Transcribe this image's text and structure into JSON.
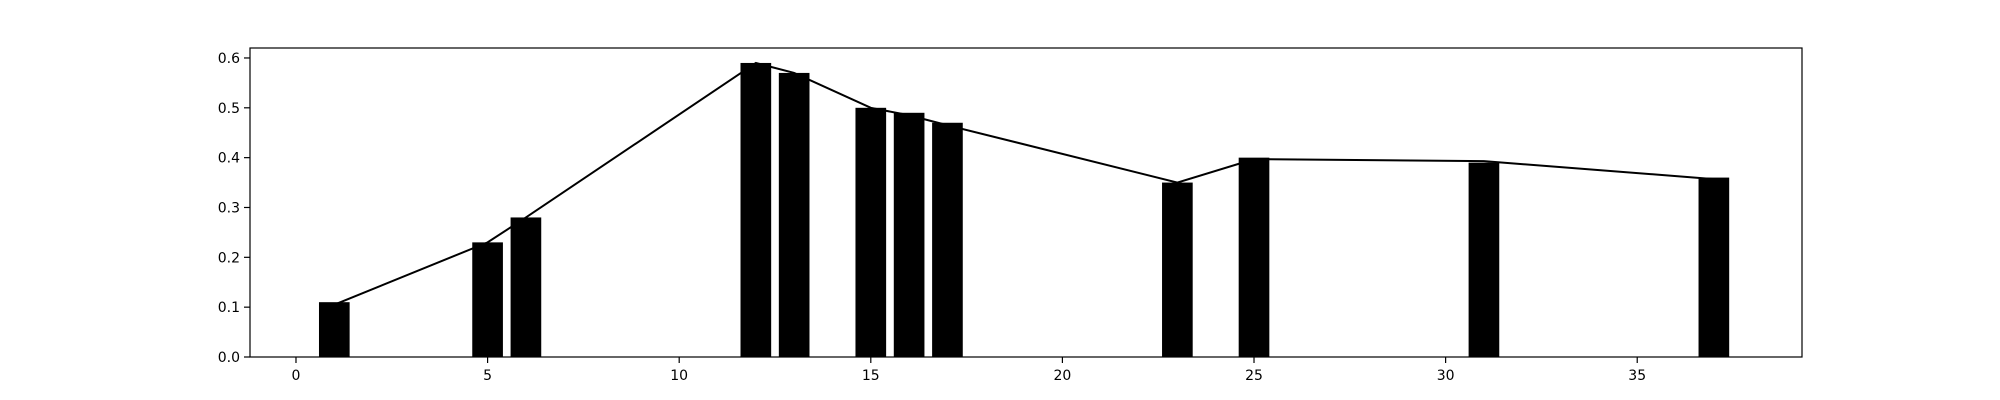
{
  "chart_data": {
    "type": "bar",
    "title": "",
    "xlabel": "",
    "ylabel": "",
    "xlim": [
      -1.2,
      39.3
    ],
    "ylim": [
      0,
      0.62
    ],
    "x_ticks": [
      0,
      5,
      10,
      15,
      20,
      25,
      30,
      35
    ],
    "y_ticks": [
      0.0,
      0.1,
      0.2,
      0.3,
      0.4,
      0.5,
      0.6
    ],
    "y_tick_labels": [
      "0.0",
      "0.1",
      "0.2",
      "0.3",
      "0.4",
      "0.5",
      "0.6"
    ],
    "grid": false,
    "bar_color": "#000000",
    "line_color": "#000000",
    "bar_width": 0.8,
    "bars": {
      "x": [
        1,
        5,
        6,
        12,
        13,
        15,
        16,
        17,
        23,
        25,
        31,
        37
      ],
      "values": [
        0.11,
        0.23,
        0.28,
        0.59,
        0.57,
        0.5,
        0.49,
        0.47,
        0.35,
        0.4,
        0.39,
        0.36
      ]
    },
    "line": {
      "x": [
        1,
        5,
        6,
        12,
        13,
        15,
        16,
        17,
        23,
        25,
        31,
        37
      ],
      "values": [
        0.105,
        0.23,
        0.28,
        0.59,
        0.57,
        0.5,
        0.485,
        0.465,
        0.35,
        0.397,
        0.393,
        0.357
      ]
    }
  }
}
